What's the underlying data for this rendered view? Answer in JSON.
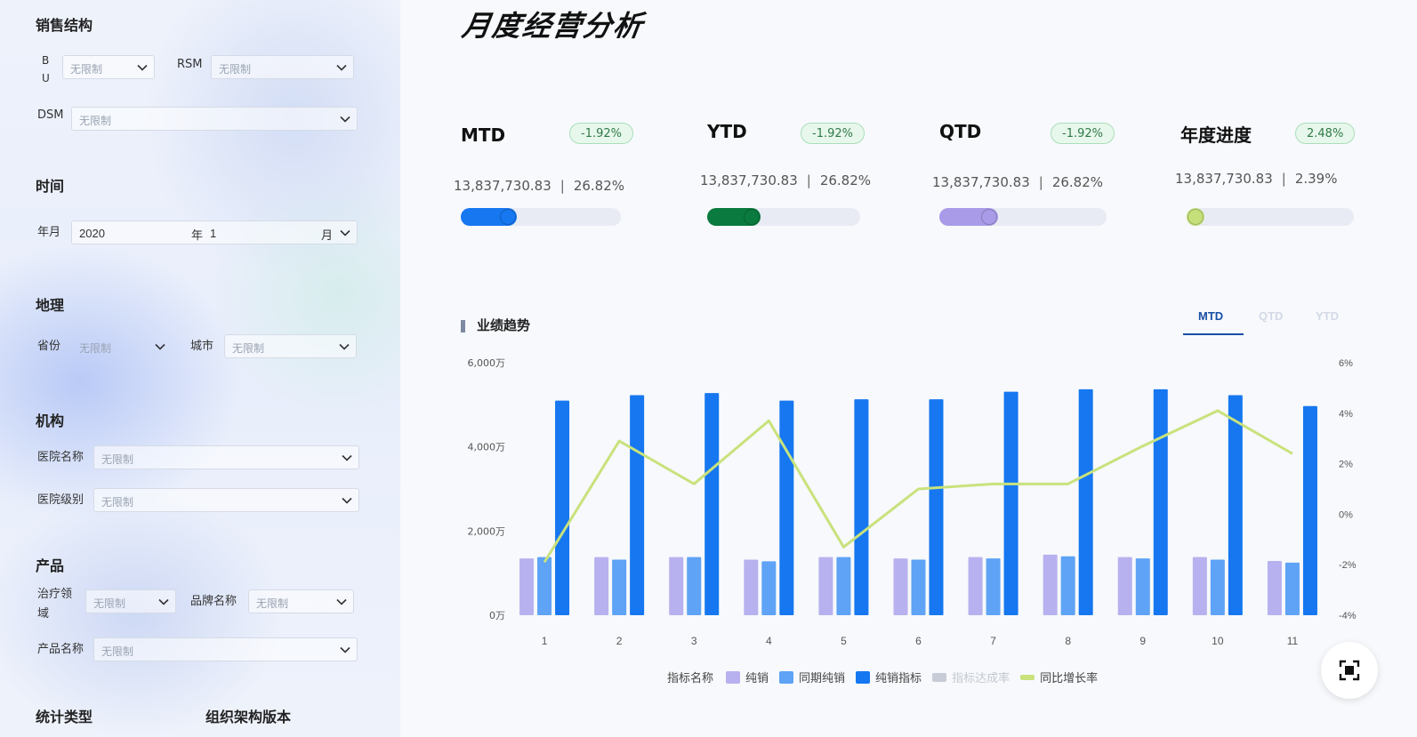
{
  "sidebar": {
    "sales_structure": {
      "title": "销售结构",
      "bu_label": "B\nU",
      "bu_value": "无限制",
      "rsm_label": "RSM",
      "rsm_value": "无限制",
      "dsm_label": "DSM",
      "dsm_value": "无限制"
    },
    "time": {
      "title": "时间",
      "month_label": "年月",
      "year_value": "2020",
      "year_unit": "年",
      "month_value": "1",
      "month_unit": "月"
    },
    "geo": {
      "title": "地理",
      "province_label": "省份",
      "province_value": "无限制",
      "city_label": "城市",
      "city_value": "无限制"
    },
    "org": {
      "title": "机构",
      "hospital_name_label": "医院名称",
      "hospital_name_value": "无限制",
      "hospital_level_label": "医院级别",
      "hospital_level_value": "无限制"
    },
    "product": {
      "title": "产品",
      "therapy_label": "治疗领\n域",
      "therapy_value": "无限制",
      "brand_label": "品牌名称",
      "brand_value": "无限制",
      "product_name_label": "产品名称",
      "product_name_value": "无限制"
    },
    "stat_type_title": "统计类型",
    "org_version_title": "组织架构版本"
  },
  "main": {
    "title": "月度经营分析",
    "kpis": [
      {
        "name": "MTD",
        "badge": "-1.92%",
        "value": "13,837,730.83",
        "sep": "|",
        "pct": "26.82%",
        "progress": 0.35,
        "color": "#1677f0"
      },
      {
        "name": "YTD",
        "badge": "-1.92%",
        "value": "13,837,730.83",
        "sep": "|",
        "pct": "26.82%",
        "progress": 0.35,
        "color": "#0b7a3e"
      },
      {
        "name": "QTD",
        "badge": "-1.92%",
        "value": "13,837,730.83",
        "sep": "|",
        "pct": "26.82%",
        "progress": 0.35,
        "color": "#a99be8"
      },
      {
        "name": "年度进度",
        "badge": "2.48%",
        "value": "13,837,730.83",
        "sep": "|",
        "pct": "2.39%",
        "progress": 0.06,
        "color": "#c5e07a"
      }
    ],
    "trend": {
      "title": "业绩趋势",
      "tabs": [
        {
          "label": "MTD",
          "active": true
        },
        {
          "label": "QTD",
          "active": false
        },
        {
          "label": "YTD",
          "active": false
        }
      ]
    },
    "legend": {
      "title": "指标名称",
      "items": [
        {
          "label": "纯销",
          "color": "#b8b1ef",
          "kind": "bar"
        },
        {
          "label": "同期纯销",
          "color": "#5ea3f5",
          "kind": "bar"
        },
        {
          "label": "纯销指标",
          "color": "#1677f0",
          "kind": "bar"
        },
        {
          "label": "指标达成率",
          "color": "#c8ccd6",
          "kind": "line",
          "muted": true
        },
        {
          "label": "同比增长率",
          "color": "#c9e27c",
          "kind": "line"
        }
      ]
    }
  },
  "chart_data": {
    "type": "bar",
    "categories": [
      "1",
      "2",
      "3",
      "4",
      "5",
      "6",
      "7",
      "8",
      "9",
      "10",
      "11"
    ],
    "series": [
      {
        "name": "纯销",
        "values": [
          1350,
          1380,
          1380,
          1320,
          1380,
          1350,
          1380,
          1440,
          1380,
          1380,
          1290
        ]
      },
      {
        "name": "同期纯销",
        "values": [
          1380,
          1320,
          1380,
          1280,
          1380,
          1320,
          1350,
          1400,
          1350,
          1320,
          1250
        ]
      },
      {
        "name": "纯销指标",
        "values": [
          5100,
          5230,
          5280,
          5100,
          5130,
          5130,
          5310,
          5370,
          5370,
          5230,
          4970
        ]
      },
      {
        "name": "同比增长率",
        "axis": "right",
        "type": "line",
        "values": [
          -1.9,
          2.9,
          1.2,
          3.7,
          -1.3,
          1.0,
          1.2,
          1.2,
          2.7,
          4.1,
          2.4
        ]
      }
    ],
    "y_left": {
      "ticks": [
        "0万",
        "2,000万",
        "4,000万",
        "6,000万"
      ],
      "ylim": [
        0,
        6000
      ]
    },
    "y_right": {
      "ticks": [
        "-4%",
        "-2%",
        "0%",
        "2%",
        "4%",
        "6%"
      ],
      "ylim": [
        -4,
        6
      ]
    },
    "legend_position": "bottom"
  }
}
